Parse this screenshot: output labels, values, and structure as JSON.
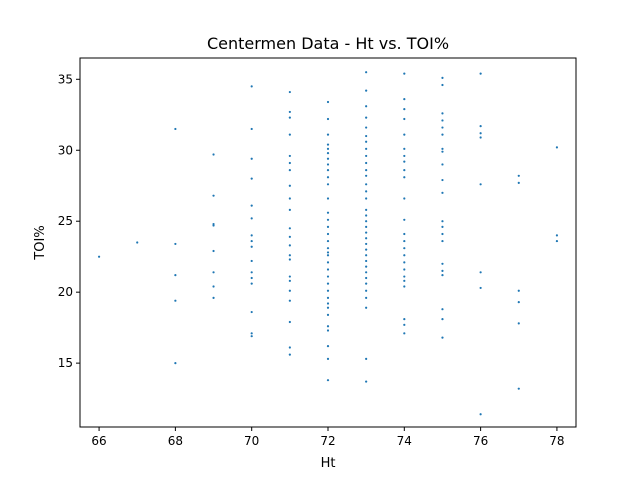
{
  "colors": {
    "marker": "#1f77b4",
    "axes": "#000000",
    "background": "#ffffff"
  },
  "chart_data": {
    "type": "scatter",
    "title": "Centermen Data - Ht vs. TOI%",
    "xlabel": "Ht",
    "ylabel": "TOI%",
    "xlim": [
      65.5,
      78.5
    ],
    "ylim": [
      10.5,
      36.5
    ],
    "xticks": [
      66,
      68,
      70,
      72,
      74,
      76,
      78
    ],
    "yticks": [
      15,
      20,
      25,
      30,
      35
    ],
    "grid": false,
    "legend": "none",
    "points": [
      [
        66,
        22.5
      ],
      [
        67,
        23.5
      ],
      [
        68,
        31.5
      ],
      [
        68,
        23.4
      ],
      [
        68,
        21.2
      ],
      [
        68,
        19.4
      ],
      [
        68,
        15.0
      ],
      [
        69,
        29.7
      ],
      [
        69,
        26.8
      ],
      [
        69,
        24.8
      ],
      [
        69,
        24.7
      ],
      [
        69,
        22.9
      ],
      [
        69,
        21.4
      ],
      [
        69,
        20.4
      ],
      [
        69,
        19.6
      ],
      [
        70,
        34.5
      ],
      [
        70,
        31.5
      ],
      [
        70,
        29.4
      ],
      [
        70,
        28.0
      ],
      [
        70,
        26.1
      ],
      [
        70,
        25.2
      ],
      [
        70,
        24.0
      ],
      [
        70,
        23.6
      ],
      [
        70,
        23.2
      ],
      [
        70,
        22.2
      ],
      [
        70,
        21.4
      ],
      [
        70,
        21.0
      ],
      [
        70,
        20.6
      ],
      [
        70,
        18.6
      ],
      [
        70,
        17.1
      ],
      [
        70,
        16.9
      ],
      [
        71,
        34.1
      ],
      [
        71,
        32.7
      ],
      [
        71,
        32.3
      ],
      [
        71,
        31.1
      ],
      [
        71,
        29.6
      ],
      [
        71,
        29.1
      ],
      [
        71,
        28.6
      ],
      [
        71,
        27.5
      ],
      [
        71,
        26.6
      ],
      [
        71,
        25.8
      ],
      [
        71,
        24.5
      ],
      [
        71,
        23.9
      ],
      [
        71,
        23.3
      ],
      [
        71,
        22.6
      ],
      [
        71,
        22.3
      ],
      [
        71,
        21.1
      ],
      [
        71,
        20.8
      ],
      [
        71,
        20.1
      ],
      [
        71,
        19.4
      ],
      [
        71,
        17.9
      ],
      [
        71,
        16.1
      ],
      [
        71,
        15.6
      ],
      [
        72,
        33.4
      ],
      [
        72,
        32.2
      ],
      [
        72,
        31.1
      ],
      [
        72,
        30.4
      ],
      [
        72,
        30.1
      ],
      [
        72,
        29.8
      ],
      [
        72,
        29.4
      ],
      [
        72,
        29.0
      ],
      [
        72,
        28.6
      ],
      [
        72,
        28.1
      ],
      [
        72,
        27.6
      ],
      [
        72,
        26.6
      ],
      [
        72,
        25.6
      ],
      [
        72,
        25.1
      ],
      [
        72,
        24.6
      ],
      [
        72,
        24.1
      ],
      [
        72,
        23.6
      ],
      [
        72,
        23.1
      ],
      [
        72,
        22.8
      ],
      [
        72,
        22.6
      ],
      [
        72,
        22.1
      ],
      [
        72,
        21.6
      ],
      [
        72,
        21.1
      ],
      [
        72,
        20.6
      ],
      [
        72,
        20.1
      ],
      [
        72,
        19.6
      ],
      [
        72,
        19.2
      ],
      [
        72,
        18.9
      ],
      [
        72,
        18.4
      ],
      [
        72,
        17.6
      ],
      [
        72,
        17.3
      ],
      [
        72,
        16.2
      ],
      [
        72,
        15.3
      ],
      [
        72,
        13.8
      ],
      [
        73,
        35.5
      ],
      [
        73,
        34.2
      ],
      [
        73,
        33.1
      ],
      [
        73,
        32.3
      ],
      [
        73,
        31.6
      ],
      [
        73,
        31.0
      ],
      [
        73,
        30.6
      ],
      [
        73,
        30.1
      ],
      [
        73,
        29.6
      ],
      [
        73,
        29.1
      ],
      [
        73,
        28.6
      ],
      [
        73,
        28.2
      ],
      [
        73,
        27.6
      ],
      [
        73,
        27.1
      ],
      [
        73,
        26.6
      ],
      [
        73,
        25.8
      ],
      [
        73,
        25.4
      ],
      [
        73,
        25.0
      ],
      [
        73,
        24.6
      ],
      [
        73,
        24.2
      ],
      [
        73,
        23.8
      ],
      [
        73,
        23.4
      ],
      [
        73,
        23.0
      ],
      [
        73,
        22.6
      ],
      [
        73,
        22.2
      ],
      [
        73,
        21.8
      ],
      [
        73,
        21.4
      ],
      [
        73,
        21.0
      ],
      [
        73,
        20.6
      ],
      [
        73,
        20.1
      ],
      [
        73,
        19.6
      ],
      [
        73,
        18.9
      ],
      [
        73,
        15.3
      ],
      [
        73,
        13.7
      ],
      [
        74,
        35.4
      ],
      [
        74,
        33.6
      ],
      [
        74,
        32.9
      ],
      [
        74,
        32.2
      ],
      [
        74,
        31.1
      ],
      [
        74,
        30.1
      ],
      [
        74,
        29.6
      ],
      [
        74,
        29.2
      ],
      [
        74,
        28.6
      ],
      [
        74,
        28.1
      ],
      [
        74,
        26.6
      ],
      [
        74,
        25.1
      ],
      [
        74,
        24.1
      ],
      [
        74,
        23.6
      ],
      [
        74,
        23.1
      ],
      [
        74,
        22.6
      ],
      [
        74,
        22.1
      ],
      [
        74,
        21.6
      ],
      [
        74,
        21.1
      ],
      [
        74,
        20.8
      ],
      [
        74,
        20.4
      ],
      [
        74,
        18.1
      ],
      [
        74,
        17.7
      ],
      [
        74,
        17.1
      ],
      [
        75,
        35.1
      ],
      [
        75,
        34.6
      ],
      [
        75,
        32.6
      ],
      [
        75,
        32.1
      ],
      [
        75,
        31.6
      ],
      [
        75,
        31.1
      ],
      [
        75,
        30.1
      ],
      [
        75,
        29.9
      ],
      [
        75,
        29.0
      ],
      [
        75,
        27.9
      ],
      [
        75,
        27.0
      ],
      [
        75,
        25.0
      ],
      [
        75,
        24.6
      ],
      [
        75,
        24.1
      ],
      [
        75,
        23.6
      ],
      [
        75,
        22.0
      ],
      [
        75,
        21.5
      ],
      [
        75,
        21.2
      ],
      [
        75,
        18.8
      ],
      [
        75,
        18.1
      ],
      [
        75,
        16.8
      ],
      [
        76,
        35.4
      ],
      [
        76,
        31.7
      ],
      [
        76,
        31.2
      ],
      [
        76,
        30.9
      ],
      [
        76,
        27.6
      ],
      [
        76,
        21.4
      ],
      [
        76,
        20.3
      ],
      [
        76,
        11.4
      ],
      [
        77,
        28.2
      ],
      [
        77,
        27.7
      ],
      [
        77,
        20.1
      ],
      [
        77,
        19.3
      ],
      [
        77,
        17.8
      ],
      [
        77,
        13.2
      ],
      [
        78,
        30.2
      ],
      [
        78,
        24.0
      ],
      [
        78,
        23.6
      ]
    ]
  }
}
